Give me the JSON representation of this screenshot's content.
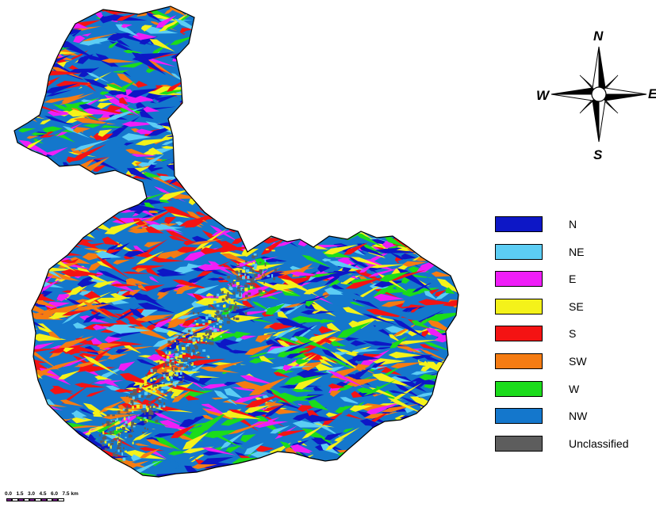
{
  "map": {
    "colors": {
      "N": "#0d17c6",
      "NE": "#5ccdf4",
      "E": "#ef1ef7",
      "SE": "#f4f21a",
      "S": "#f41313",
      "SW": "#f57c13",
      "W": "#1bdc1b",
      "NW": "#1477cc",
      "Unclassified": "#5d5d5d"
    }
  },
  "compass": {
    "north": "N",
    "south": "S",
    "east": "E",
    "west": "W"
  },
  "legend": {
    "items": [
      {
        "label": "N",
        "color": "#0d17c6"
      },
      {
        "label": "NE",
        "color": "#5ccdf4"
      },
      {
        "label": "E",
        "color": "#ef1ef7"
      },
      {
        "label": "SE",
        "color": "#f4f21a"
      },
      {
        "label": "S",
        "color": "#f41313"
      },
      {
        "label": "SW",
        "color": "#f57c13"
      },
      {
        "label": "W",
        "color": "#1bdc1b"
      },
      {
        "label": "NW",
        "color": "#1477cc"
      },
      {
        "label": "Unclassified",
        "color": "#5d5d5d"
      }
    ]
  },
  "scalebar": {
    "labels": [
      "0.0",
      "1.5",
      "3.0",
      "4.5",
      "6.0",
      "7.5 km"
    ],
    "colors": [
      "#000000",
      "#7a1f8c",
      "#ffffff"
    ]
  }
}
